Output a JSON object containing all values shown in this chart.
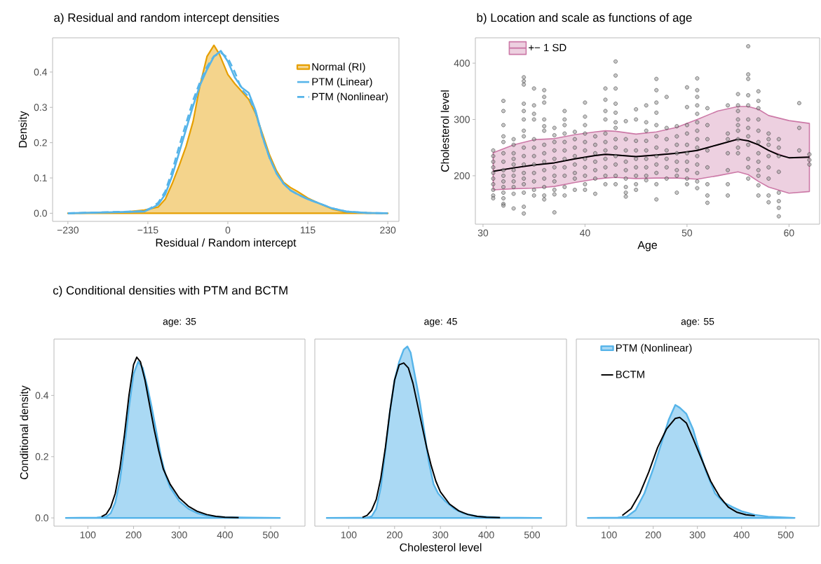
{
  "chart_data": [
    {
      "type": "line",
      "title": "a) Residual and random intercept densities",
      "xlabel": "Residual / Random intercept",
      "ylabel": "Density",
      "xlim": [
        -252,
        246
      ],
      "ylim": [
        -0.023,
        0.497
      ],
      "xticks": [
        {
          "value": -230,
          "label": "−230"
        },
        {
          "value": -115,
          "label": "−115"
        },
        0,
        115,
        230
      ],
      "yticks": [
        {
          "value": 0,
          "label": "0.0"
        },
        0.1,
        0.2,
        0.3,
        0.4
      ],
      "legend": "top right",
      "series": [
        {
          "name": "Normal (RI)",
          "type": "area",
          "color": "#e69f00",
          "x": [
            -230,
            -150,
            -120,
            -100,
            -90,
            -80,
            -70,
            -60,
            -50,
            -40,
            -30,
            -20,
            -12,
            0,
            10,
            20,
            30,
            40,
            50,
            60,
            70,
            80,
            90,
            100,
            115,
            130,
            150,
            170,
            200,
            230
          ],
          "values": [
            0,
            0.003,
            0.009,
            0.018,
            0.04,
            0.084,
            0.135,
            0.19,
            0.26,
            0.363,
            0.444,
            0.476,
            0.45,
            0.393,
            0.367,
            0.345,
            0.323,
            0.282,
            0.224,
            0.165,
            0.12,
            0.088,
            0.073,
            0.062,
            0.043,
            0.029,
            0.012,
            0.003,
            0.001,
            0
          ]
        },
        {
          "name": "PTM (Linear)",
          "line_style": "solid",
          "color": "#56b4e9",
          "x": [
            -230,
            -120,
            -110,
            -100,
            -90,
            -80,
            -70,
            -60,
            -50,
            -40,
            -30,
            -20,
            -10,
            0,
            10,
            20,
            30,
            40,
            50,
            60,
            70,
            80,
            90,
            100,
            115,
            130,
            150,
            170,
            200,
            230
          ],
          "values": [
            0,
            0.005,
            0.014,
            0.025,
            0.054,
            0.106,
            0.172,
            0.238,
            0.304,
            0.363,
            0.407,
            0.444,
            0.46,
            0.43,
            0.385,
            0.356,
            0.341,
            0.29,
            0.216,
            0.157,
            0.113,
            0.084,
            0.065,
            0.054,
            0.04,
            0.029,
            0.014,
            0.005,
            0.001,
            0
          ]
        },
        {
          "name": "PTM (Nonlinear)",
          "line_style": "dashed",
          "color": "#56b4e9",
          "x": [
            -230,
            -120,
            -110,
            -100,
            -90,
            -80,
            -70,
            -60,
            -50,
            -40,
            -30,
            -20,
            -10,
            0,
            10,
            20,
            30,
            40,
            50,
            60,
            70,
            80,
            90,
            100,
            115,
            130,
            150,
            170,
            200,
            230
          ],
          "values": [
            0,
            0.006,
            0.016,
            0.03,
            0.062,
            0.12,
            0.19,
            0.255,
            0.32,
            0.372,
            0.415,
            0.445,
            0.455,
            0.44,
            0.4,
            0.35,
            0.33,
            0.285,
            0.215,
            0.157,
            0.113,
            0.084,
            0.065,
            0.054,
            0.04,
            0.029,
            0.014,
            0.005,
            0.001,
            0
          ]
        }
      ]
    },
    {
      "type": "scatter",
      "title": "b) Location and scale as functions of age",
      "xlabel": "Age",
      "ylabel": "Cholesterol level",
      "xlim": [
        29.25,
        63
      ],
      "ylim": [
        114,
        445
      ],
      "xticks": [
        30,
        40,
        50,
        60
      ],
      "yticks": [
        200,
        300,
        400
      ],
      "legend": "top left",
      "series": [
        {
          "marker": "circle",
          "color": "#999999",
          "x": [
            31,
            31,
            31,
            31,
            31,
            31,
            31,
            31,
            31,
            31,
            32,
            32,
            32,
            32,
            32,
            32,
            32,
            32,
            32,
            32,
            32,
            32,
            32,
            32,
            32,
            33,
            33,
            33,
            33,
            33,
            33,
            33,
            33,
            33,
            33,
            33,
            34,
            34,
            34,
            34,
            34,
            34,
            34,
            34,
            34,
            34,
            34,
            34,
            34,
            34,
            34,
            34,
            34,
            35,
            35,
            35,
            35,
            35,
            35,
            35,
            35,
            35,
            35,
            35,
            35,
            36,
            36,
            36,
            36,
            36,
            36,
            36,
            36,
            36,
            36,
            36,
            36,
            36,
            36,
            37,
            37,
            37,
            37,
            37,
            37,
            37,
            37,
            37,
            37,
            37,
            38,
            38,
            38,
            38,
            38,
            38,
            38,
            38,
            38,
            38,
            38,
            39,
            39,
            39,
            39,
            39,
            39,
            39,
            39,
            40,
            40,
            40,
            40,
            40,
            40,
            40,
            40,
            40,
            40,
            40,
            41,
            41,
            41,
            41,
            41,
            41,
            41,
            42,
            42,
            42,
            42,
            42,
            42,
            42,
            42,
            42,
            42,
            42,
            43,
            43,
            43,
            43,
            43,
            43,
            43,
            43,
            43,
            43,
            43,
            43,
            43,
            44,
            44,
            44,
            44,
            44,
            44,
            44,
            44,
            44,
            45,
            45,
            45,
            45,
            45,
            45,
            45,
            45,
            45,
            46,
            46,
            46,
            46,
            46,
            46,
            46,
            46,
            46,
            47,
            47,
            47,
            47,
            47,
            47,
            47,
            47,
            47,
            47,
            47,
            47,
            48,
            48,
            48,
            48,
            48,
            48,
            48,
            49,
            49,
            49,
            49,
            49,
            49,
            49,
            49,
            50,
            50,
            50,
            50,
            50,
            50,
            50,
            50,
            50,
            50,
            51,
            51,
            51,
            51,
            51,
            51,
            51,
            51,
            51,
            51,
            51,
            51,
            51,
            51,
            52,
            52,
            52,
            52,
            52,
            52,
            52,
            52,
            54,
            54,
            54,
            54,
            54,
            54,
            54,
            55,
            55,
            55,
            55,
            55,
            55,
            55,
            55,
            55,
            56,
            56,
            56,
            56,
            56,
            56,
            56,
            56,
            56,
            56,
            56,
            56,
            57,
            57,
            57,
            57,
            57,
            57,
            57,
            57,
            57,
            57,
            57,
            57,
            58,
            58,
            58,
            58,
            58,
            58,
            58,
            58,
            59,
            59,
            59,
            59,
            59,
            59,
            59,
            59,
            61,
            61,
            61,
            62,
            62,
            62
          ],
          "values": [
            245,
            235,
            225,
            215,
            205,
            195,
            185,
            175,
            165,
            160,
            333,
            315,
            290,
            270,
            260,
            240,
            225,
            210,
            200,
            190,
            180,
            170,
            160,
            150,
            147,
            265,
            255,
            240,
            230,
            220,
            210,
            200,
            190,
            180,
            168,
            142,
            375,
            368,
            362,
            328,
            315,
            300,
            280,
            270,
            250,
            235,
            220,
            205,
            195,
            185,
            170,
            145,
            133,
            355,
            325,
            310,
            300,
            265,
            250,
            235,
            220,
            205,
            190,
            175,
            165,
            352,
            340,
            330,
            300,
            288,
            280,
            255,
            240,
            225,
            210,
            195,
            180,
            165,
            158,
            285,
            272,
            260,
            245,
            230,
            215,
            200,
            190,
            175,
            167,
            135,
            315,
            300,
            290,
            275,
            260,
            245,
            230,
            215,
            200,
            180,
            165,
            278,
            265,
            250,
            235,
            220,
            205,
            195,
            175,
            330,
            305,
            290,
            275,
            260,
            245,
            230,
            215,
            200,
            185,
            175,
            270,
            255,
            240,
            225,
            210,
            195,
            168,
            355,
            335,
            315,
            300,
            275,
            260,
            245,
            230,
            215,
            200,
            185,
            403,
            378,
            355,
            328,
            312,
            295,
            285,
            265,
            250,
            235,
            220,
            200,
            185,
            297,
            265,
            245,
            225,
            210,
            195,
            180,
            170,
            163,
            318,
            300,
            262,
            245,
            230,
            215,
            200,
            185,
            175,
            325,
            295,
            280,
            262,
            245,
            230,
            215,
            200,
            192,
            372,
            352,
            330,
            312,
            290,
            270,
            250,
            235,
            220,
            205,
            185,
            158,
            340,
            285,
            265,
            245,
            230,
            215,
            195,
            288,
            270,
            255,
            240,
            225,
            210,
            200,
            170,
            357,
            322,
            290,
            275,
            255,
            240,
            225,
            210,
            195,
            185,
            373,
            352,
            340,
            325,
            310,
            295,
            280,
            265,
            250,
            235,
            220,
            205,
            190,
            178,
            320,
            290,
            265,
            245,
            215,
            185,
            165,
            152,
            325,
            275,
            265,
            240,
            210,
            185,
            165,
            345,
            325,
            315,
            300,
            290,
            280,
            265,
            250,
            240,
            430,
            380,
            372,
            343,
            325,
            300,
            285,
            270,
            255,
            230,
            215,
            195,
            350,
            333,
            320,
            300,
            280,
            260,
            240,
            225,
            210,
            200,
            183,
            165,
            275,
            265,
            255,
            235,
            215,
            195,
            165,
            153,
            265,
            250,
            235,
            207,
            170,
            155,
            143,
            128,
            329,
            285,
            245,
            238,
            228,
            220
          ]
        },
        {
          "name": "+− 1 SD",
          "type": "line",
          "color": "#cc79a7",
          "x": [
            31,
            33,
            35,
            37,
            39,
            41,
            42,
            43,
            45,
            47,
            49,
            51,
            53,
            55,
            56,
            57,
            58,
            60,
            62
          ],
          "values": [
            208,
            214,
            219,
            223,
            230,
            236,
            238,
            237,
            234,
            237,
            240,
            245,
            255,
            265,
            262,
            255,
            245,
            232,
            233
          ],
          "upper": [
            241,
            255,
            264,
            266,
            273,
            278,
            280,
            279,
            274,
            278,
            286,
            300,
            315,
            323,
            323,
            318,
            307,
            298,
            293
          ],
          "lower": [
            175,
            177,
            178,
            181,
            188,
            194,
            196,
            197,
            195,
            196,
            196,
            194,
            200,
            207,
            202,
            190,
            180,
            169,
            172
          ]
        },
        {
          "type": "line",
          "color": "#000000",
          "x": [
            31,
            33,
            35,
            37,
            39,
            41,
            42,
            43,
            45,
            47,
            49,
            51,
            53,
            55,
            56,
            57,
            58,
            59,
            60,
            62
          ],
          "values": [
            208,
            214,
            219,
            223,
            230,
            236,
            238,
            237,
            234,
            237,
            240,
            245,
            255,
            265,
            262,
            255,
            245,
            237,
            232,
            233
          ]
        }
      ]
    },
    {
      "type": "area",
      "title": "age: 35",
      "ylabel": "Conditional density",
      "annotations": [
        "c) Conditional densities with PTM and BCTM"
      ],
      "xlim": [
        26,
        575
      ],
      "ylim": [
        -0.027,
        0.584
      ],
      "xticks": [
        100,
        200,
        300,
        400,
        500
      ],
      "yticks": [
        {
          "value": 0,
          "label": "0.0"
        },
        0.2,
        0.4
      ],
      "series": [
        {
          "color": "#56b4e9",
          "x": [
            52,
            120,
            140,
            150,
            160,
            170,
            180,
            190,
            200,
            210,
            220,
            230,
            240,
            250,
            260,
            270,
            280,
            300,
            320,
            340,
            360,
            400,
            450,
            520
          ],
          "values": [
            0,
            0.001,
            0.004,
            0.015,
            0.05,
            0.12,
            0.23,
            0.36,
            0.47,
            0.51,
            0.49,
            0.43,
            0.36,
            0.28,
            0.2,
            0.14,
            0.1,
            0.055,
            0.03,
            0.015,
            0.007,
            0.002,
            0.001,
            0
          ]
        },
        {
          "type": "line",
          "color": "#000000",
          "x": [
            130,
            140,
            150,
            160,
            170,
            180,
            190,
            200,
            207,
            215,
            225,
            235,
            245,
            255,
            265,
            280,
            300,
            320,
            340,
            360,
            380,
            400,
            430
          ],
          "values": [
            0.004,
            0.012,
            0.035,
            0.08,
            0.16,
            0.27,
            0.4,
            0.5,
            0.525,
            0.51,
            0.45,
            0.37,
            0.29,
            0.22,
            0.16,
            0.11,
            0.065,
            0.038,
            0.021,
            0.011,
            0.005,
            0.002,
            0.001
          ]
        }
      ]
    },
    {
      "type": "area",
      "title": "age: 45",
      "xlabel": "Cholesterol level",
      "xlim": [
        26,
        575
      ],
      "ylim": [
        -0.027,
        0.584
      ],
      "xticks": [
        100,
        200,
        300,
        400,
        500
      ],
      "tick_labels": "x",
      "series": [
        {
          "color": "#56b4e9",
          "x": [
            52,
            140,
            150,
            160,
            170,
            180,
            190,
            200,
            210,
            220,
            228,
            235,
            245,
            255,
            265,
            275,
            285,
            295,
            310,
            330,
            350,
            380,
            430,
            520
          ],
          "values": [
            0,
            0.001,
            0.005,
            0.03,
            0.1,
            0.22,
            0.35,
            0.45,
            0.51,
            0.55,
            0.56,
            0.54,
            0.46,
            0.38,
            0.28,
            0.18,
            0.11,
            0.08,
            0.055,
            0.03,
            0.015,
            0.005,
            0.001,
            0
          ]
        },
        {
          "type": "line",
          "color": "#000000",
          "x": [
            130,
            140,
            150,
            160,
            170,
            180,
            190,
            200,
            210,
            220,
            230,
            240,
            250,
            260,
            270,
            280,
            290,
            300,
            320,
            340,
            360,
            380,
            400,
            430
          ],
          "values": [
            0.002,
            0.008,
            0.025,
            0.06,
            0.13,
            0.23,
            0.35,
            0.45,
            0.5,
            0.506,
            0.49,
            0.44,
            0.37,
            0.3,
            0.23,
            0.17,
            0.12,
            0.085,
            0.045,
            0.023,
            0.011,
            0.005,
            0.002,
            0.001
          ]
        }
      ]
    },
    {
      "type": "area",
      "title": "age: 55",
      "xlim": [
        26,
        575
      ],
      "ylim": [
        -0.027,
        0.584
      ],
      "xticks": [
        100,
        200,
        300,
        400,
        500
      ],
      "tick_labels": "x",
      "legend": "top left",
      "series": [
        {
          "name": "PTM (Nonlinear)",
          "color": "#56b4e9",
          "x": [
            52,
            120,
            140,
            160,
            180,
            200,
            220,
            235,
            250,
            260,
            275,
            290,
            300,
            320,
            340,
            360,
            380,
            400,
            430,
            460,
            520
          ],
          "values": [
            0,
            0.001,
            0.004,
            0.025,
            0.08,
            0.16,
            0.25,
            0.32,
            0.369,
            0.36,
            0.34,
            0.29,
            0.24,
            0.15,
            0.08,
            0.05,
            0.035,
            0.022,
            0.01,
            0.004,
            0
          ]
        },
        {
          "name": "BCTM",
          "type": "line",
          "color": "#000000",
          "x": [
            130,
            150,
            170,
            190,
            210,
            230,
            250,
            260,
            275,
            290,
            310,
            330,
            350,
            370,
            390,
            410,
            430
          ],
          "values": [
            0.008,
            0.03,
            0.08,
            0.15,
            0.23,
            0.29,
            0.325,
            0.328,
            0.31,
            0.26,
            0.19,
            0.12,
            0.07,
            0.035,
            0.018,
            0.01,
            0.007
          ]
        }
      ]
    }
  ]
}
